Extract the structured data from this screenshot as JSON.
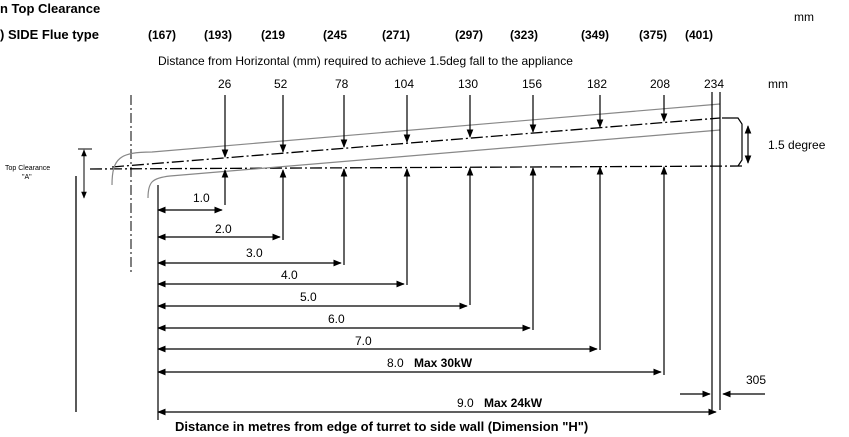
{
  "header": {
    "top_clearance_label": "n Top Clearance",
    "side_flue_label": ") SIDE Flue type",
    "unit_top": "mm",
    "unit_mid": "mm",
    "clearance_values": [
      "(167)",
      "(193)",
      "(219",
      "(245",
      "(271)",
      "(297)",
      "(323)",
      "(349)",
      "(375)",
      "(401)"
    ],
    "subtitle": "Distance from Horizontal (mm) required to achieve 1.5deg fall to the appliance",
    "fall_values": [
      "26",
      "52",
      "78",
      "104",
      "130",
      "156",
      "182",
      "208",
      "234"
    ]
  },
  "labels": {
    "angle": "1.5 degree",
    "top_clearance_small_1": "Top Clearance",
    "top_clearance_small_2": "\"A\"",
    "wall_gap": "305",
    "x_axis": "Distance in metres from edge of turret to side wall (Dimension \"H\")"
  },
  "distances": [
    {
      "value": "1.0",
      "note": ""
    },
    {
      "value": "2.0",
      "note": ""
    },
    {
      "value": "3.0",
      "note": ""
    },
    {
      "value": "4.0",
      "note": ""
    },
    {
      "value": "5.0",
      "note": ""
    },
    {
      "value": "6.0",
      "note": ""
    },
    {
      "value": "7.0",
      "note": ""
    },
    {
      "value": "8.0",
      "note": "Max 30kW"
    },
    {
      "value": "9.0",
      "note": "Max 24kW"
    }
  ]
}
